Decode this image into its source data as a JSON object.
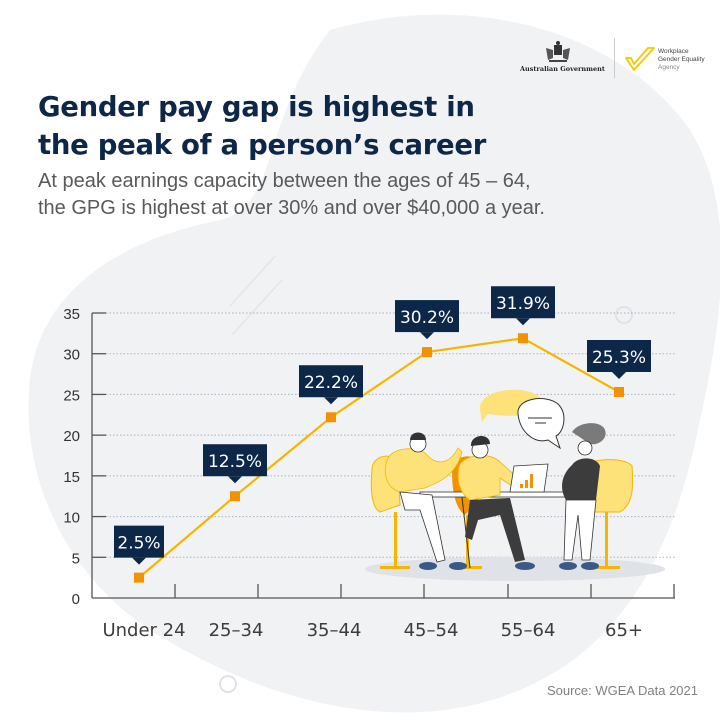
{
  "header": {
    "gov_logo_text": "Australian Government",
    "agency_logo_lines": [
      "Workplace",
      "Gender Equality",
      "Agency"
    ]
  },
  "title_lines": [
    "Gender pay gap is highest in",
    "the peak of a person’s career"
  ],
  "subtitle_lines": [
    "At peak earnings capacity between the ages of 45 – 64,",
    "the GPG is highest at over 30% and over $40,000 a year."
  ],
  "chart_data": {
    "type": "line",
    "title": "Gender pay gap is highest in the peak of a person’s career",
    "xlabel": "",
    "ylabel": "",
    "categories": [
      "Under 24",
      "25–34",
      "35–44",
      "45–54",
      "55–64",
      "65+"
    ],
    "values": [
      2.5,
      12.5,
      22.2,
      30.2,
      31.9,
      25.3
    ],
    "data_labels": [
      "2.5%",
      "12.5%",
      "22.2%",
      "30.2%",
      "31.9%",
      "25.3%"
    ],
    "yticks": [
      0,
      5,
      10,
      15,
      20,
      25,
      30,
      35
    ],
    "ylim": [
      0,
      35
    ],
    "grid": "horizontal dotted",
    "legend": "none",
    "series_color": "#f7b500",
    "marker_color": "#f39200",
    "label_bg_color": "#0d2749"
  },
  "footer": {
    "source": "Source: WGEA Data 2021"
  },
  "colors": {
    "navy": "#0d2749",
    "line_yellow": "#f7b500",
    "marker_orange": "#f39200",
    "blob_gray": "#f1f2f4",
    "text_gray": "#58595b"
  }
}
